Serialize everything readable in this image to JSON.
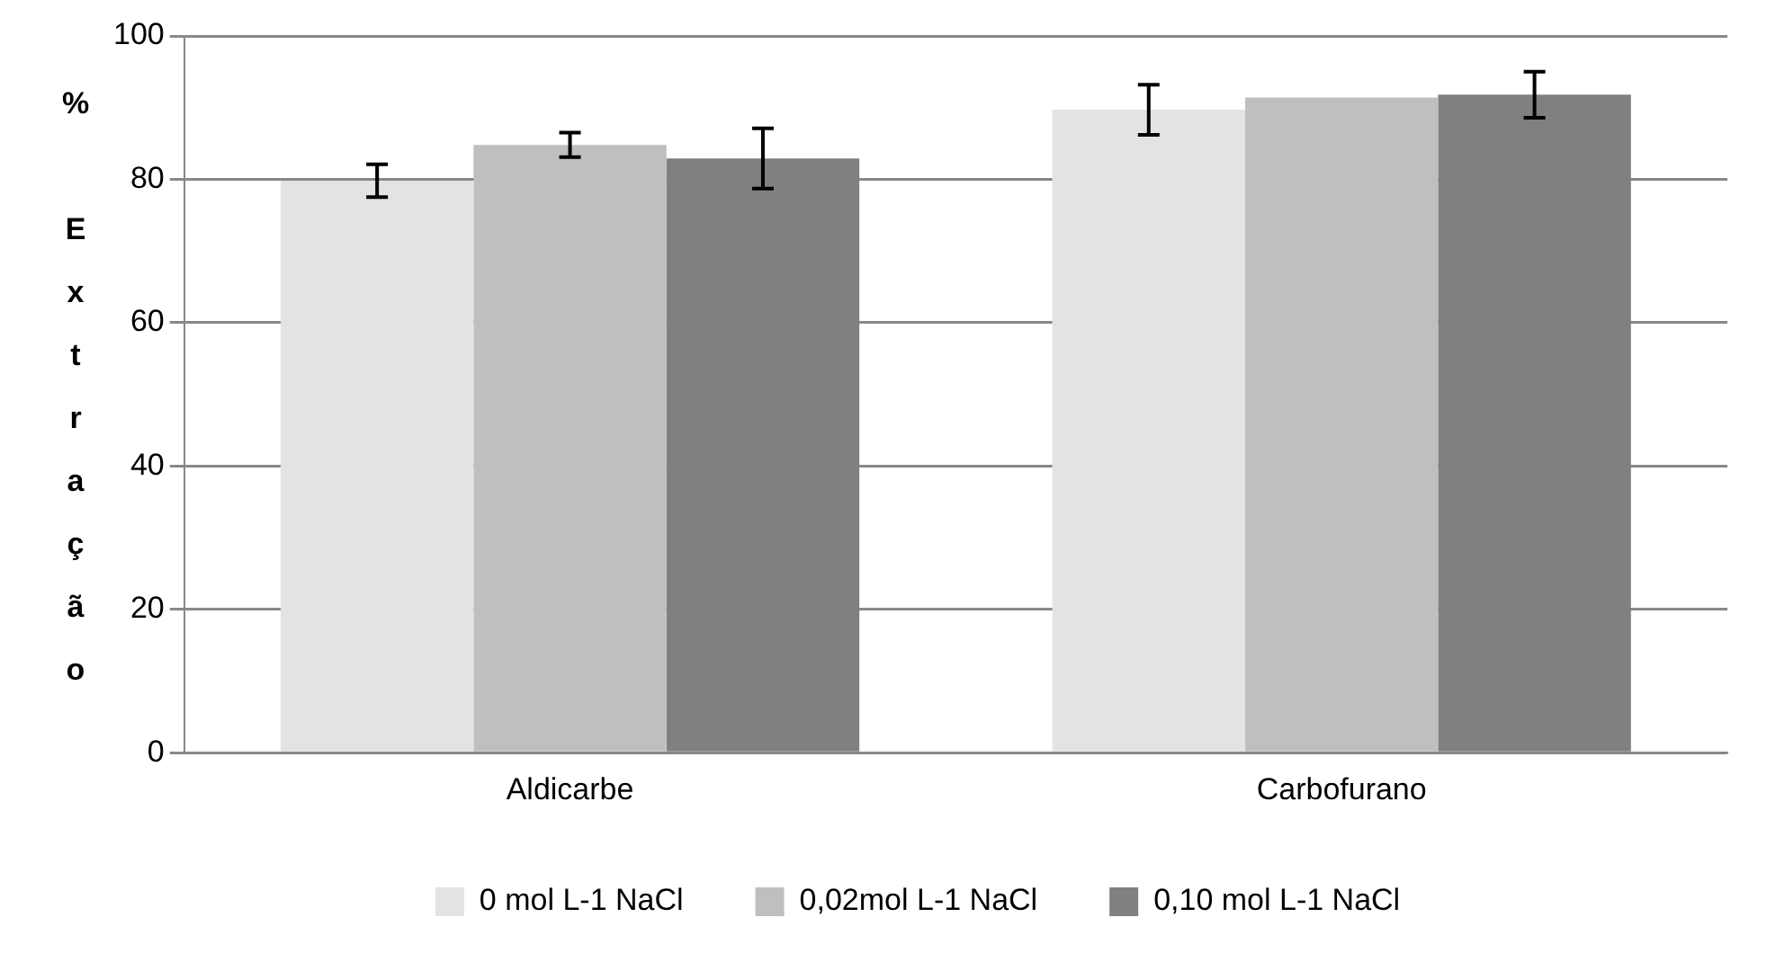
{
  "chart_data": {
    "type": "bar",
    "ylabel": "% Extração",
    "categories": [
      "Aldicarbe",
      "Carbofurano"
    ],
    "series": [
      {
        "name": "0 mol L-1 NaCl",
        "color": "#e3e3e3",
        "values": [
          79.8,
          89.7
        ],
        "errors": [
          2.3,
          3.5
        ]
      },
      {
        "name": "0,02mol L-1 NaCl",
        "color": "#bfbfbf",
        "values": [
          84.8,
          91.4
        ],
        "errors": [
          1.7,
          null
        ]
      },
      {
        "name": "0,10 mol L-1 NaCl",
        "color": "#808080",
        "values": [
          82.9,
          91.8
        ],
        "errors": [
          4.2,
          3.2
        ]
      }
    ],
    "ylim": [
      0,
      100
    ],
    "yticks": [
      0,
      20,
      40,
      60,
      80,
      100
    ],
    "grid": "y",
    "legend": "bottom"
  }
}
